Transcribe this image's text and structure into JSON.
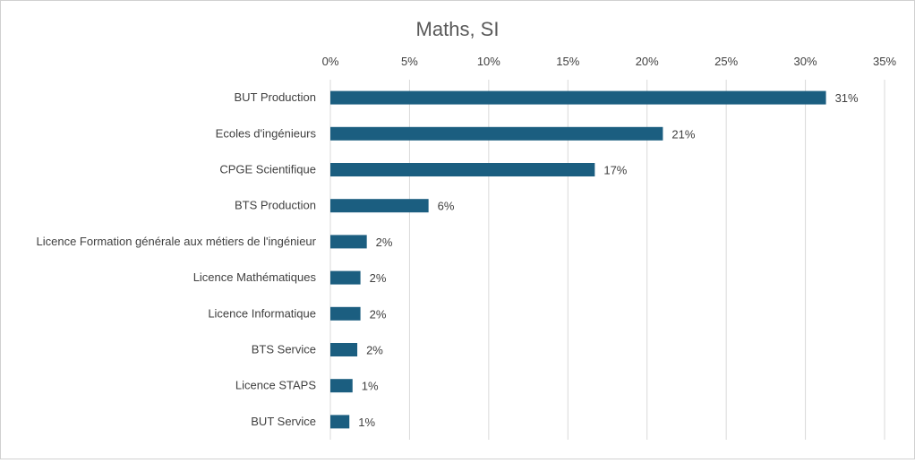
{
  "chart_data": {
    "type": "bar",
    "orientation": "horizontal",
    "title": "Maths, SI",
    "xlabel": "",
    "ylabel": "",
    "xlim": [
      0,
      35
    ],
    "x_ticks": [
      0,
      5,
      10,
      15,
      20,
      25,
      30,
      35
    ],
    "x_tick_labels": [
      "0%",
      "5%",
      "10%",
      "15%",
      "20%",
      "25%",
      "30%",
      "35%"
    ],
    "grid": true,
    "legend": "none",
    "categories": [
      "BUT Production",
      "Ecoles d'ingénieurs",
      "CPGE Scientifique",
      "BTS Production",
      "Licence Formation générale aux métiers de l'ingénieur",
      "Licence Mathématiques",
      "Licence Informatique",
      "BTS Service",
      "Licence STAPS",
      "BUT Service"
    ],
    "values": [
      31.3,
      21.0,
      16.7,
      6.2,
      2.3,
      1.9,
      1.9,
      1.7,
      1.4,
      1.2
    ],
    "data_labels": [
      "31%",
      "21%",
      "17%",
      "6%",
      "2%",
      "2%",
      "2%",
      "2%",
      "1%",
      "1%"
    ],
    "colors": {
      "bar": "#1b5e80",
      "grid": "#d9d9d9",
      "text": "#404040",
      "title": "#595959"
    }
  }
}
